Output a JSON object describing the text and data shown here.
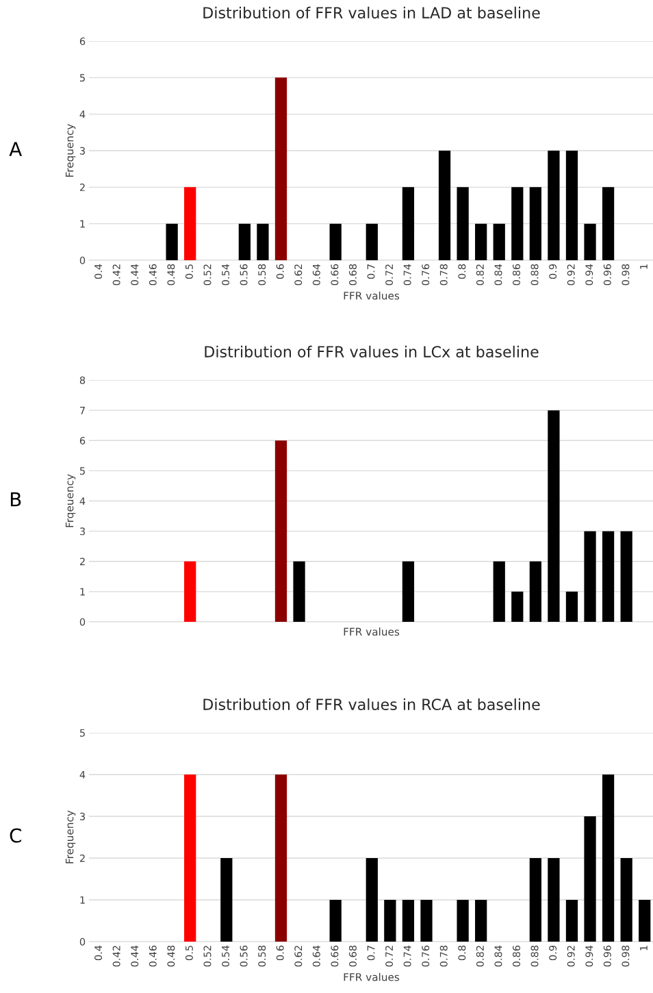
{
  "chart_data": [
    {
      "type": "bar",
      "title": "Distribution of FFR values in LAD at baseline",
      "xlabel": "FFR values",
      "ylabel": "Frequency",
      "annotations": [
        "A"
      ],
      "categories": [
        "0.4",
        "0.42",
        "0.44",
        "0.46",
        "0.48",
        "0.5",
        "0.52",
        "0.54",
        "0.56",
        "0.58",
        "0.6",
        "0.62",
        "0.64",
        "0.66",
        "0.68",
        "0.7",
        "0.72",
        "0.74",
        "0.76",
        "0.78",
        "0.8",
        "0.82",
        "0.84",
        "0.86",
        "0.88",
        "0.9",
        "0.92",
        "0.94",
        "0.96",
        "0.98",
        "1"
      ],
      "values": [
        0,
        0,
        0,
        0,
        1,
        2,
        0,
        0,
        1,
        1,
        5,
        0,
        0,
        1,
        0,
        1,
        0,
        2,
        0,
        3,
        2,
        1,
        1,
        2,
        2,
        3,
        3,
        1,
        2,
        0,
        0
      ],
      "colors": [
        "#000000",
        "#000000",
        "#000000",
        "#000000",
        "#000000",
        "#ff0000",
        "#000000",
        "#000000",
        "#000000",
        "#000000",
        "#8b0000",
        "#000000",
        "#000000",
        "#000000",
        "#000000",
        "#000000",
        "#000000",
        "#000000",
        "#000000",
        "#000000",
        "#000000",
        "#000000",
        "#000000",
        "#000000",
        "#000000",
        "#000000",
        "#000000",
        "#000000",
        "#000000",
        "#000000",
        "#000000"
      ],
      "ylim": [
        0,
        6
      ],
      "yticks": [
        0,
        1,
        2,
        3,
        4,
        5,
        6
      ],
      "grid": "y",
      "legend": false
    },
    {
      "type": "bar",
      "title": "Distribution of FFR values in LCx at baseline",
      "xlabel": "FFR values",
      "ylabel": "Frqeuency",
      "annotations": [
        "B"
      ],
      "categories": [
        null,
        null,
        null,
        null,
        null,
        null,
        null,
        null,
        null,
        null,
        null,
        null,
        null,
        null,
        null,
        null,
        null,
        null,
        null,
        null,
        null,
        null,
        null,
        null,
        null,
        null,
        null,
        null,
        null,
        null,
        null
      ],
      "values": [
        0,
        0,
        0,
        0,
        0,
        2,
        0,
        0,
        0,
        0,
        6,
        2,
        0,
        0,
        0,
        0,
        0,
        2,
        0,
        0,
        0,
        0,
        2,
        1,
        2,
        7,
        1,
        3,
        3,
        3,
        0
      ],
      "colors": [
        "#000000",
        "#000000",
        "#000000",
        "#000000",
        "#000000",
        "#ff0000",
        "#000000",
        "#000000",
        "#000000",
        "#000000",
        "#8b0000",
        "#000000",
        "#000000",
        "#000000",
        "#000000",
        "#000000",
        "#000000",
        "#000000",
        "#000000",
        "#000000",
        "#000000",
        "#000000",
        "#000000",
        "#000000",
        "#000000",
        "#000000",
        "#000000",
        "#000000",
        "#000000",
        "#000000",
        "#000000"
      ],
      "ylim": [
        0,
        8
      ],
      "yticks": [
        0,
        1,
        2,
        3,
        4,
        5,
        6,
        7,
        8
      ],
      "grid": "y",
      "legend": false
    },
    {
      "type": "bar",
      "title": "Distribution of FFR values in RCA at baseline",
      "xlabel": "FFR values",
      "ylabel": "Frequency",
      "annotations": [
        "C"
      ],
      "categories": [
        "0.4",
        "0.42",
        "0.44",
        "0.46",
        "0.48",
        "0.5",
        "0.52",
        "0.54",
        "0.56",
        "0.58",
        "0.6",
        "0.62",
        "0.64",
        "0.66",
        "0.68",
        "0.7",
        "0.72",
        "0.74",
        "0.76",
        "0.78",
        "0.8",
        "0.82",
        "0.84",
        "0.86",
        "0.88",
        "0.9",
        "0.92",
        "0.94",
        "0.96",
        "0.98",
        "1"
      ],
      "values": [
        0,
        0,
        0,
        0,
        0,
        4,
        0,
        2,
        0,
        0,
        4,
        0,
        0,
        1,
        0,
        2,
        1,
        1,
        1,
        0,
        1,
        1,
        0,
        0,
        2,
        2,
        1,
        3,
        4,
        2,
        1
      ],
      "colors": [
        "#000000",
        "#000000",
        "#000000",
        "#000000",
        "#000000",
        "#ff0000",
        "#000000",
        "#000000",
        "#000000",
        "#000000",
        "#8b0000",
        "#000000",
        "#000000",
        "#000000",
        "#000000",
        "#000000",
        "#000000",
        "#000000",
        "#000000",
        "#000000",
        "#000000",
        "#000000",
        "#000000",
        "#000000",
        "#000000",
        "#000000",
        "#000000",
        "#000000",
        "#000000",
        "#000000",
        "#000000"
      ],
      "ylim": [
        0,
        5
      ],
      "yticks": [
        0,
        1,
        2,
        3,
        4,
        5
      ],
      "grid": "y",
      "legend": false
    }
  ]
}
